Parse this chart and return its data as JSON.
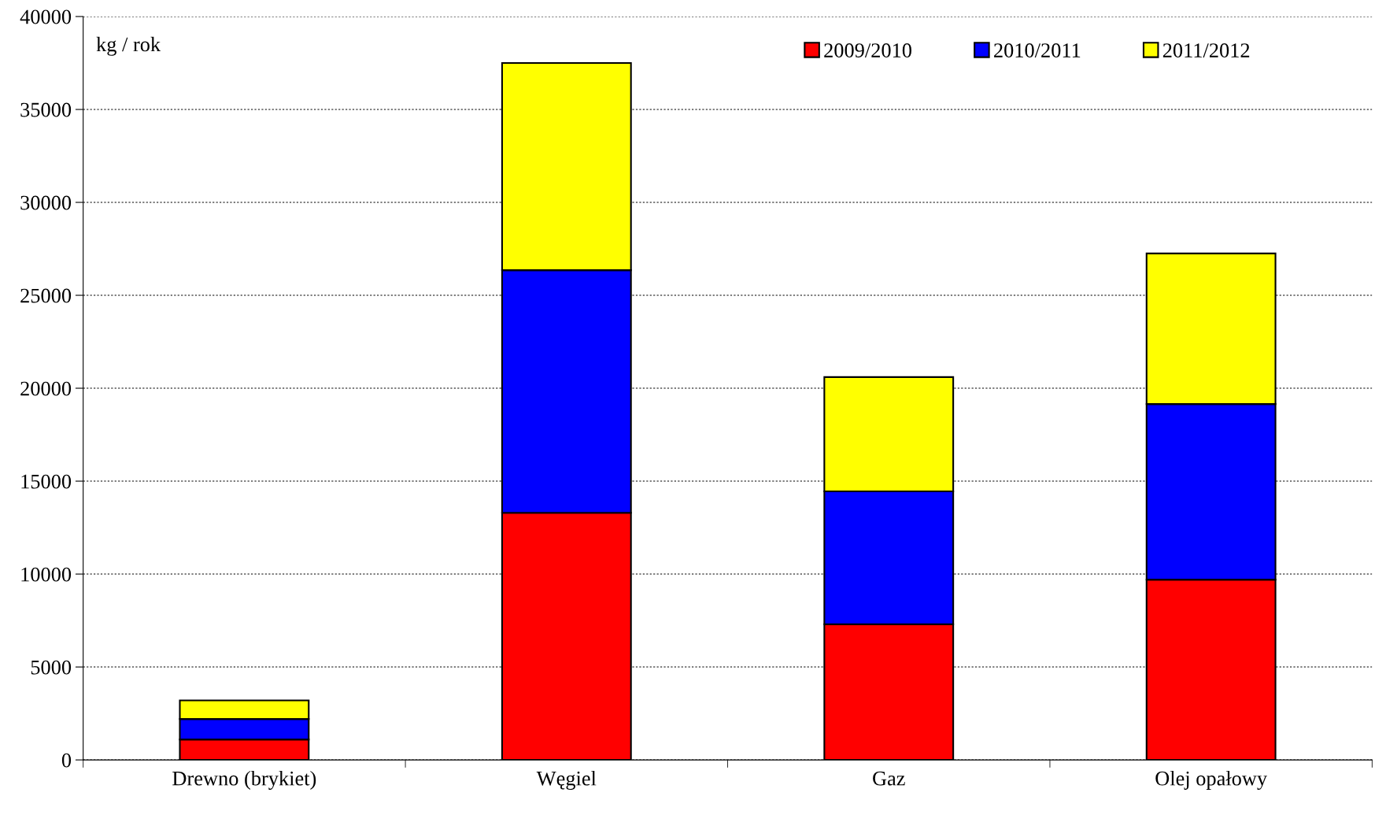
{
  "chart_data": {
    "type": "bar",
    "stacked": true,
    "ylabel": "kg / rok",
    "categories": [
      "Drewno (brykiet)",
      "Węgiel",
      "Gaz",
      "Olej opałowy"
    ],
    "series": [
      {
        "name": "2009/2010",
        "color": "#ff0000",
        "values": [
          1100,
          13300,
          7300,
          9700
        ]
      },
      {
        "name": "2010/2011",
        "color": "#0000ff",
        "values": [
          1100,
          13050,
          7150,
          9450
        ]
      },
      {
        "name": "2011/2012",
        "color": "#ffff00",
        "values": [
          1000,
          11150,
          6150,
          8100
        ]
      }
    ],
    "ylim": [
      0,
      40000
    ],
    "yticks": [
      0,
      5000,
      10000,
      15000,
      20000,
      25000,
      30000,
      35000,
      40000
    ],
    "grid": "y",
    "legend": "top right"
  }
}
